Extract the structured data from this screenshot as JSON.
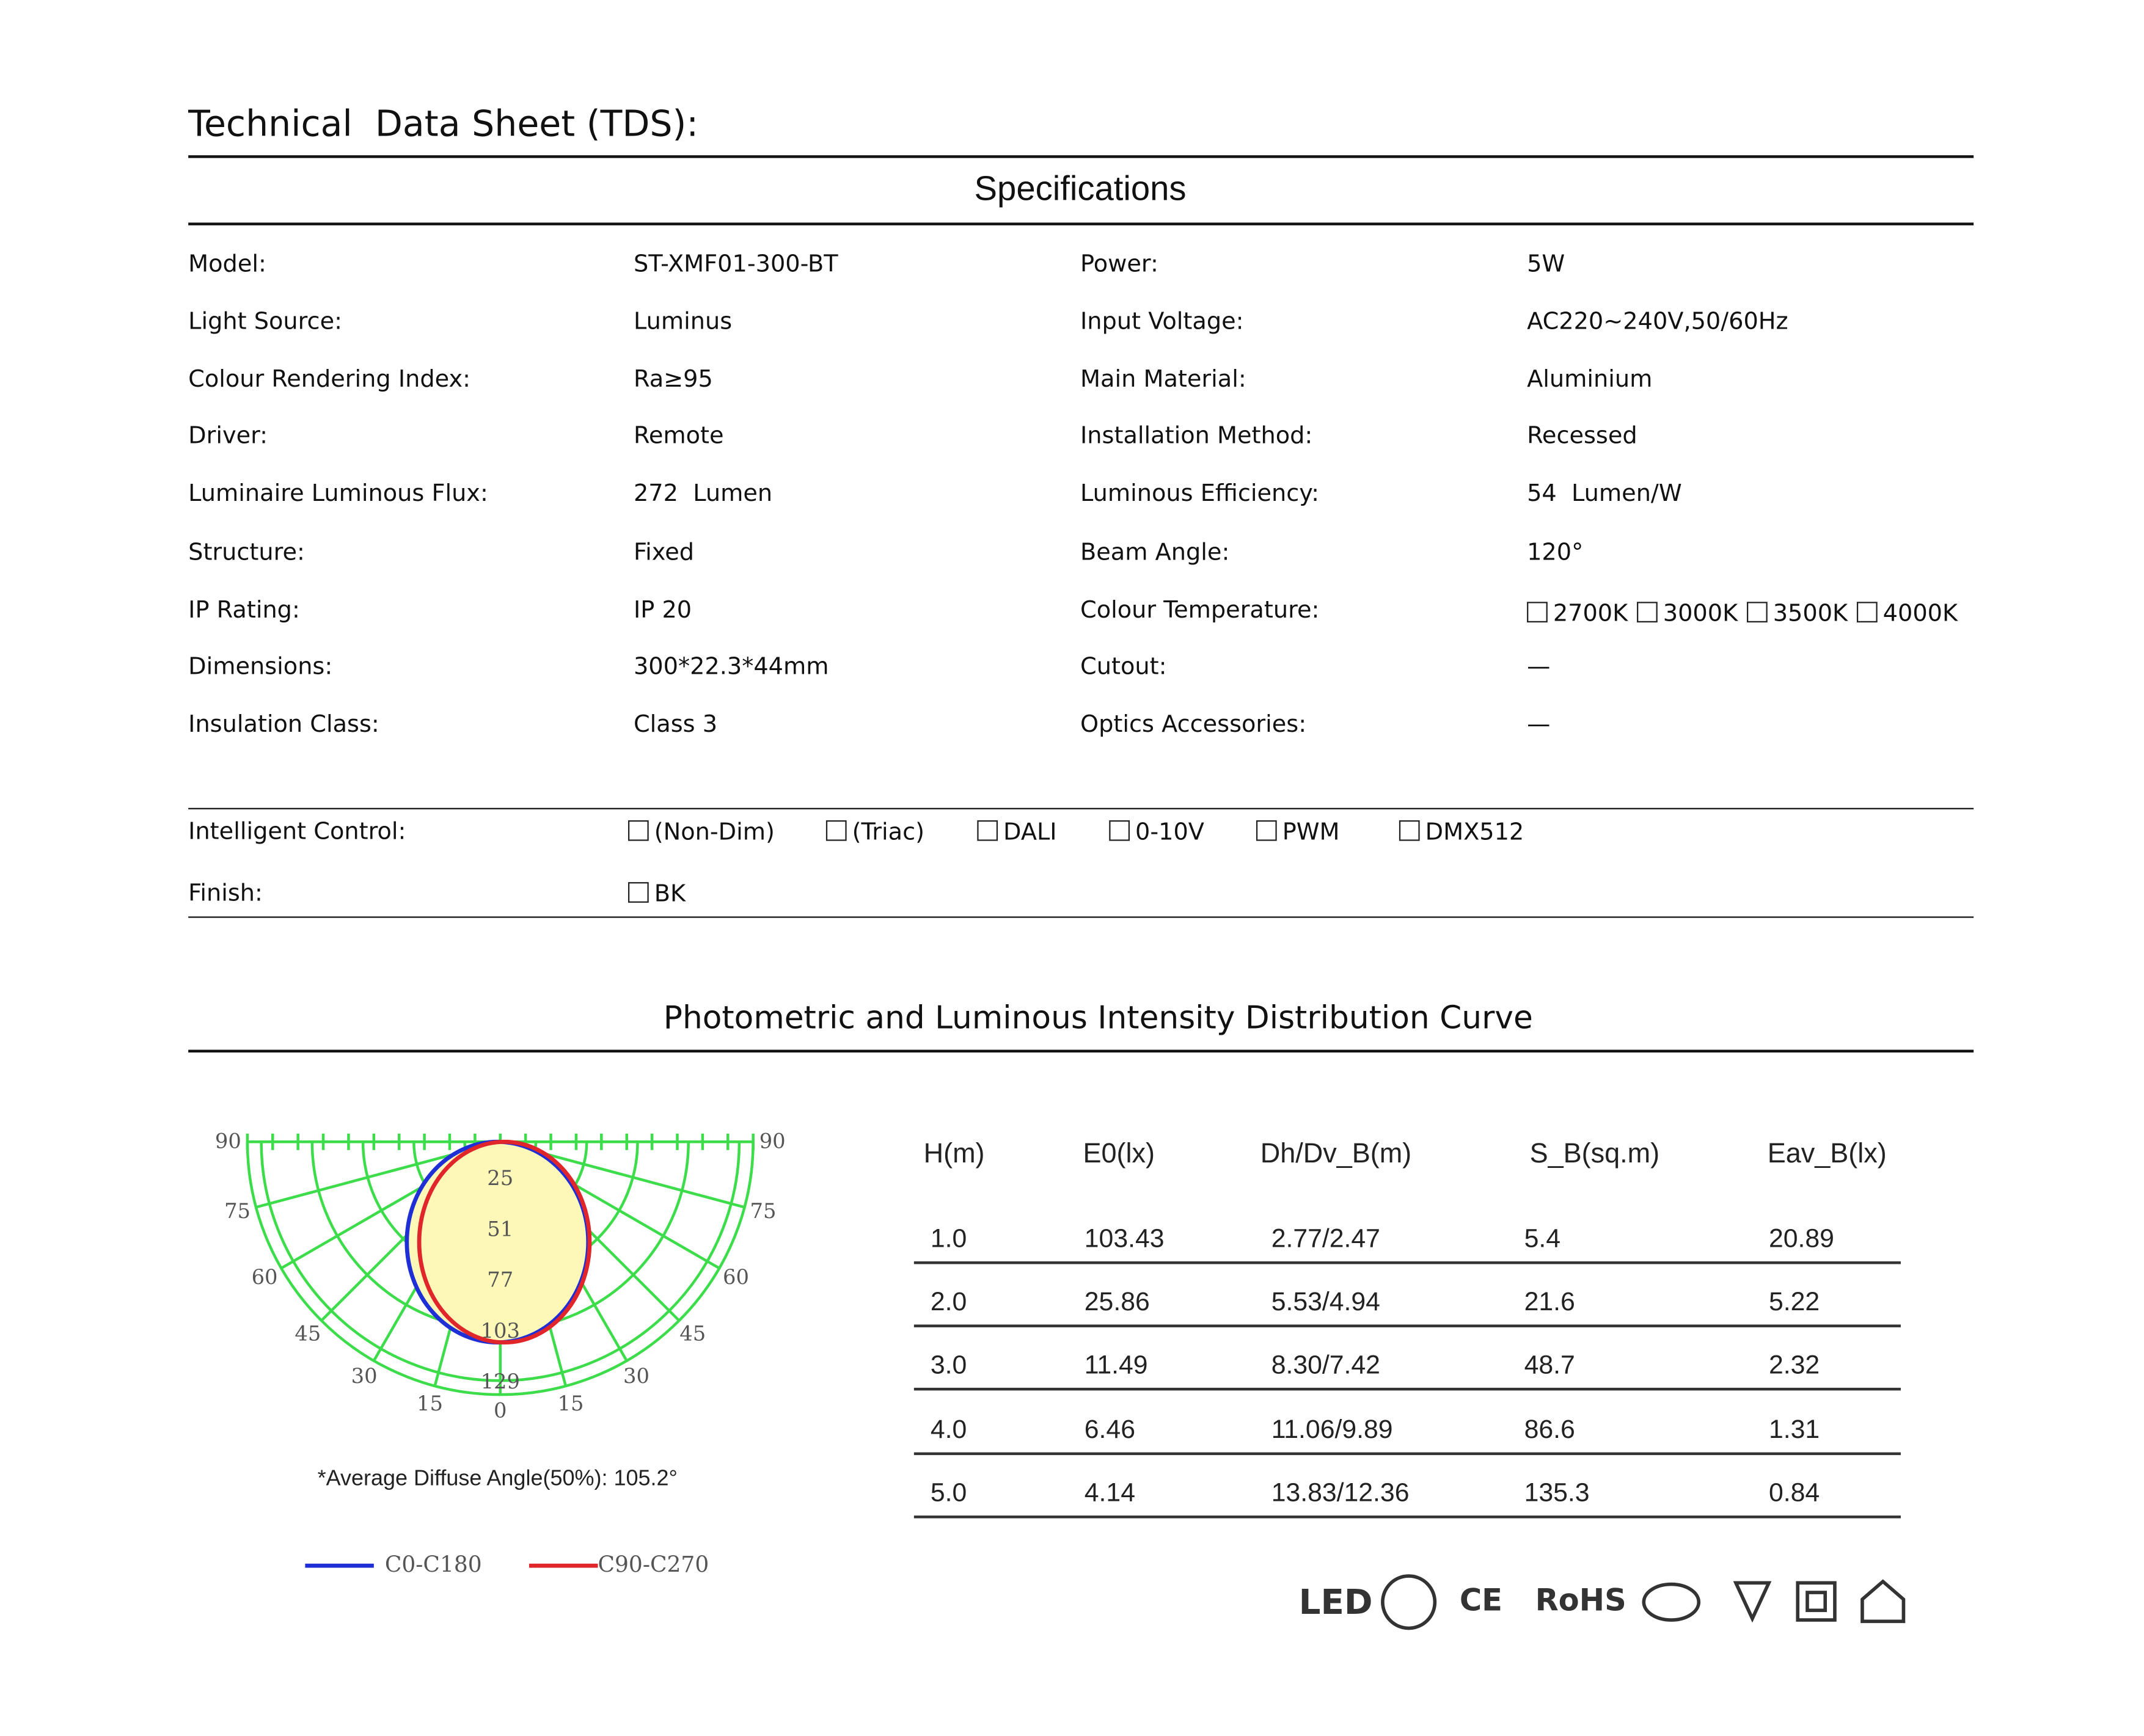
{
  "header": {
    "title": "Technical  Data Sheet (TDS):",
    "section": "Specifications"
  },
  "specs": [
    {
      "left": {
        "label": "Model:",
        "value": "ST-XMF01-300-BT"
      },
      "right": {
        "label": "Power:",
        "value": "5W"
      }
    },
    {
      "left": {
        "label": "Light Source:",
        "value": "Luminus"
      },
      "right": {
        "label": "Input Voltage:",
        "value": "AC220~240V,50/60Hz"
      }
    },
    {
      "left": {
        "label": "Colour Rendering Index:",
        "value": "Ra≥95"
      },
      "right": {
        "label": "Main Material:",
        "value": "Aluminium"
      }
    },
    {
      "left": {
        "label": "Driver:",
        "value": "Remote"
      },
      "right": {
        "label": "Installation Method:",
        "value": "Recessed"
      }
    },
    {
      "left": {
        "label": "Luminaire Luminous Flux:",
        "value": "272  Lumen"
      },
      "right": {
        "label": "Luminous Efficiency:",
        "value": "54  Lumen/W"
      }
    },
    {
      "left": {
        "label": "Structure:",
        "value": "Fixed"
      },
      "right": {
        "label": "Beam Angle:",
        "value": "120°"
      }
    },
    {
      "left": {
        "label": "IP Rating:",
        "value": "IP 20"
      },
      "right": {
        "label": "Colour Temperature:",
        "options": [
          "2700K",
          "3000K",
          "3500K",
          "4000K"
        ]
      }
    },
    {
      "left": {
        "label": "Dimensions:",
        "value": "300*22.3*44mm"
      },
      "right": {
        "label": "Cutout:",
        "value": "—"
      }
    },
    {
      "left": {
        "label": "Insulation Class:",
        "value": "Class 3"
      },
      "right": {
        "label": "Optics Accessories:",
        "value": "—"
      }
    }
  ],
  "controls": {
    "label": "Intelligent Control:",
    "options": [
      "(Non-Dim)",
      "(Triac)",
      "DALI",
      "0-10V",
      "PWM",
      "DMX512"
    ]
  },
  "finish": {
    "label": "Finish:",
    "options": [
      "BK"
    ]
  },
  "photometric": {
    "title": "Photometric and Luminous Intensity Distribution Curve",
    "angle_labels_left": [
      "90",
      "75",
      "60",
      "45",
      "30",
      "15"
    ],
    "center_label": "0",
    "angle_labels_right": [
      "15",
      "30",
      "45",
      "60",
      "75",
      "90"
    ],
    "ring_labels": [
      "25",
      "51",
      "77",
      "103",
      "129"
    ],
    "note": "*Average Diffuse Angle(50%): 105.2°",
    "legend": [
      {
        "name": "C0-C180",
        "color": "#1f2fd6"
      },
      {
        "name": "C90-C270",
        "color": "#e0262a"
      }
    ]
  },
  "table": {
    "header": [
      "H(m)",
      "E0(lx)",
      "Dh/Dv_B(m)",
      "S_B(sq.m)",
      "Eav_B(lx)"
    ],
    "rows": [
      [
        "1.0",
        "103.43",
        "2.77/2.47",
        "5.4",
        "20.89"
      ],
      [
        "2.0",
        "25.86",
        "5.53/4.94",
        "21.6",
        "5.22"
      ],
      [
        "3.0",
        "11.49",
        "8.30/7.42",
        "48.7",
        "2.32"
      ],
      [
        "4.0",
        "6.46",
        "11.06/9.89",
        "86.6",
        "1.31"
      ],
      [
        "5.0",
        "4.14",
        "13.83/12.36",
        "135.3",
        "0.84"
      ]
    ]
  },
  "certifications": [
    "LED",
    "CE",
    "RoHS"
  ]
}
